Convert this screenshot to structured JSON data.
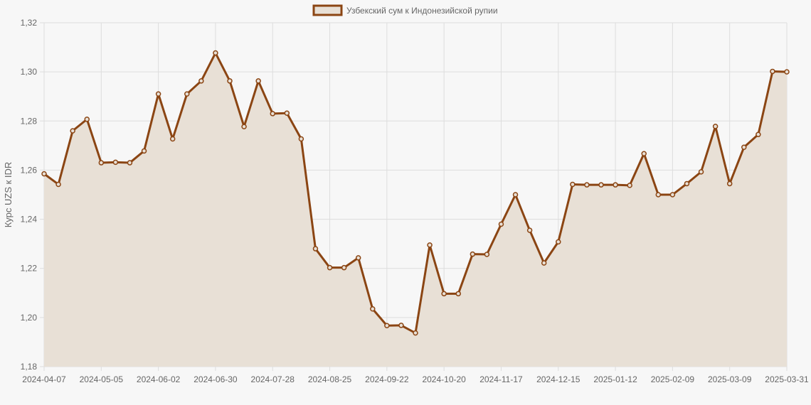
{
  "chart_data": {
    "type": "area",
    "title": "",
    "ylabel": "Курс UZS к IDR",
    "xlabel": "",
    "ylim": [
      1.18,
      1.32
    ],
    "y_ticks": [
      "1,18",
      "1,20",
      "1,22",
      "1,24",
      "1,26",
      "1,28",
      "1,30",
      "1,32"
    ],
    "x_tick_labels": [
      "2024-04-07",
      "2024-05-05",
      "2024-06-02",
      "2024-06-30",
      "2024-07-28",
      "2024-08-25",
      "2024-09-22",
      "2024-10-20",
      "2024-11-17",
      "2024-12-15",
      "2025-01-12",
      "2025-02-09",
      "2025-03-09",
      "2025-03-31"
    ],
    "grid": true,
    "legend_position": "top-center",
    "colors": {
      "line": "#8b4513",
      "fill": "#e8e0d6",
      "grid": "#dddddd",
      "background": "#f7f7f7"
    },
    "series": [
      {
        "name": "Узбекский сум к Индонезийской рупии",
        "values": [
          1.2585,
          1.2542,
          1.276,
          1.2807,
          1.263,
          1.2632,
          1.263,
          1.2678,
          1.291,
          1.2727,
          1.291,
          1.2963,
          1.3077,
          1.2963,
          1.2777,
          1.2963,
          1.283,
          1.2832,
          1.2727,
          1.228,
          1.2203,
          1.2203,
          1.2243,
          1.2035,
          1.1967,
          1.1968,
          1.1937,
          1.2295,
          1.2097,
          1.2097,
          1.2258,
          1.2257,
          1.238,
          1.25,
          1.2355,
          1.2222,
          1.2308,
          1.2542,
          1.254,
          1.254,
          1.254,
          1.2538,
          1.2667,
          1.25,
          1.25,
          1.2545,
          1.2593,
          1.2778,
          1.2545,
          1.2693,
          1.2745,
          1.3002,
          1.3
        ]
      }
    ]
  }
}
